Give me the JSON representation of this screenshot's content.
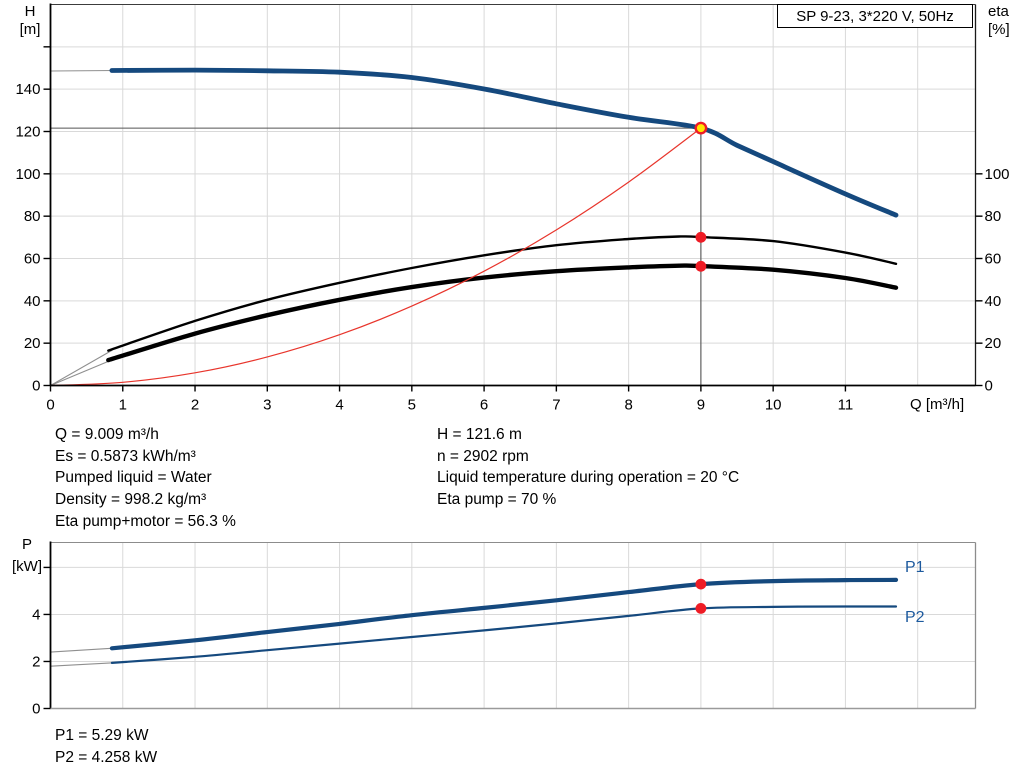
{
  "title_box": {
    "text": "SP 9-23, 3*220 V, 50Hz"
  },
  "colors": {
    "curve_blue": "#15497e",
    "label_blue": "#1d5a9e",
    "curve_black": "#000000",
    "curve_red": "#e8352c",
    "marker_red": "#ee1c25",
    "duty_fill": "#ffe600",
    "ext_gray": "#8f8f8f",
    "gridline": "#d9d9d9",
    "crosshair": "#555555",
    "text": "#000000"
  },
  "info_panel": {
    "left": [
      "Q = 9.009 m³/h",
      "Es = 0.5873 kWh/m³",
      "Pumped liquid = Water",
      "Density = 998.2 kg/m³",
      "Eta pump+motor = 56.3 %"
    ],
    "right": [
      "H = 121.6 m",
      "n = 2902 rpm",
      "Liquid temperature during operation = 20 °C",
      "Eta pump = 70 %"
    ]
  },
  "result_panel": {
    "lines": [
      "P1 = 5.29 kW",
      "P2 = 4.258 kW"
    ]
  },
  "chart_data": [
    {
      "id": "head-efficiency-curve",
      "type": "line",
      "title": "SP 9-23, 3*220 V, 50Hz",
      "xlabel": "Q [m³/h]",
      "ylabel": "H [m]",
      "ylabel_lines": [
        "H",
        "[m]"
      ],
      "y2label": "eta [%]",
      "y2label_lines": [
        "eta",
        "[%]"
      ],
      "xlim": [
        0,
        12.8
      ],
      "ylim": [
        0,
        180
      ],
      "y2_note": "eta axis 0-100 % plotted 1:1 against H metres",
      "xticks": [
        0,
        1,
        2,
        3,
        4,
        5,
        6,
        7,
        8,
        9,
        10,
        11
      ],
      "yticks": [
        0,
        20,
        40,
        60,
        80,
        100,
        120,
        140
      ],
      "ytick_marks": [
        0,
        20,
        40,
        60,
        80,
        100,
        120,
        140,
        160
      ],
      "y2ticks": [
        0,
        20,
        40,
        60,
        80,
        100
      ],
      "grid_x": [
        1,
        2,
        3,
        4,
        5,
        6,
        7,
        8,
        9,
        10,
        11,
        12
      ],
      "grid_y": [
        20,
        40,
        60,
        80,
        100,
        120,
        140,
        160
      ],
      "duty_point": {
        "q": 9,
        "h": 121.6
      },
      "series": [
        {
          "name": "head-extension",
          "color": "#8f8f8f",
          "width": 1.1,
          "points": [
            [
              0,
              148.6
            ],
            [
              0.9,
              148.8
            ]
          ]
        },
        {
          "name": "head",
          "color": "#15497e",
          "width": 4.8,
          "points": [
            [
              0.85,
              148.8
            ],
            [
              2,
              149.0
            ],
            [
              3,
              148.7
            ],
            [
              4,
              148.0
            ],
            [
              5,
              145.5
            ],
            [
              6,
              140.1
            ],
            [
              7,
              133.1
            ],
            [
              8,
              126.7
            ],
            [
              9,
              121.6
            ],
            [
              9.5,
              113.5
            ],
            [
              10,
              105.8
            ],
            [
              11,
              90.5
            ],
            [
              11.7,
              80.5
            ]
          ]
        },
        {
          "name": "eta-pump-extension",
          "color": "#8f8f8f",
          "width": 1.1,
          "points": [
            [
              0,
              0
            ],
            [
              0.85,
              16.6
            ]
          ]
        },
        {
          "name": "eta-pump",
          "color": "#000000",
          "width": 2.4,
          "points": [
            [
              0.8,
              16.5
            ],
            [
              2,
              30.5
            ],
            [
              3,
              40.5
            ],
            [
              4,
              48.5
            ],
            [
              5,
              55.5
            ],
            [
              6,
              61.5
            ],
            [
              7,
              66.3
            ],
            [
              8,
              69.2
            ],
            [
              8.7,
              70.4
            ],
            [
              9,
              70.1
            ],
            [
              10,
              68.2
            ],
            [
              11,
              62.8
            ],
            [
              11.7,
              57.5
            ]
          ]
        },
        {
          "name": "eta-pump-motor-extension",
          "color": "#8f8f8f",
          "width": 1.1,
          "points": [
            [
              0,
              0
            ],
            [
              0.85,
              12.1
            ]
          ]
        },
        {
          "name": "eta-pump-motor",
          "color": "#000000",
          "width": 4.4,
          "points": [
            [
              0.8,
              12
            ],
            [
              2,
              24.5
            ],
            [
              3,
              33.2
            ],
            [
              4,
              40.5
            ],
            [
              5,
              46.5
            ],
            [
              6,
              51
            ],
            [
              7,
              54
            ],
            [
              8,
              55.8
            ],
            [
              8.7,
              56.6
            ],
            [
              9,
              56.4
            ],
            [
              10,
              54.7
            ],
            [
              11,
              50.8
            ],
            [
              11.7,
              46.2
            ]
          ]
        },
        {
          "name": "system-curve",
          "color": "#e8352c",
          "width": 1.2,
          "points": [
            [
              0,
              0
            ],
            [
              1,
              1.5
            ],
            [
              2,
              6
            ],
            [
              3,
              13.5
            ],
            [
              4,
              24
            ],
            [
              5,
              37.5
            ],
            [
              6,
              54
            ],
            [
              7,
              73.5
            ],
            [
              8,
              96.1
            ],
            [
              9,
              121.6
            ]
          ]
        }
      ],
      "markers": [
        {
          "q": 9,
          "value": 121.6,
          "style": "duty-yellow",
          "meaning": "duty point H = 121.6 m"
        },
        {
          "q": 9,
          "value": 70,
          "style": "red-dot",
          "meaning": "eta pump = 70 %"
        },
        {
          "q": 9,
          "value": 56.3,
          "style": "red-dot",
          "meaning": "eta pump+motor = 56.3 %"
        }
      ]
    },
    {
      "id": "power-curve",
      "type": "line",
      "title": "",
      "xlabel": "",
      "ylabel": "P [kW]",
      "ylabel_lines": [
        "P",
        "[kW]"
      ],
      "xlim": [
        0,
        12.8
      ],
      "ylim": [
        0,
        7.06
      ],
      "yticks": [
        0,
        2,
        4
      ],
      "ytick_marks": [
        0,
        2,
        4,
        6
      ],
      "grid_x": [
        1,
        2,
        3,
        4,
        5,
        6,
        7,
        8,
        9,
        10,
        11,
        12
      ],
      "grid_y": [
        2,
        4,
        6
      ],
      "series": [
        {
          "name": "p1-extension",
          "color": "#8f8f8f",
          "width": 1.1,
          "points": [
            [
              0,
              2.4
            ],
            [
              0.9,
              2.57
            ]
          ]
        },
        {
          "name": "p1",
          "label": "P1",
          "color": "#15497e",
          "width": 4.2,
          "points": [
            [
              0.85,
              2.56
            ],
            [
              2,
              2.9
            ],
            [
              3,
              3.25
            ],
            [
              4,
              3.6
            ],
            [
              5,
              3.97
            ],
            [
              6,
              4.28
            ],
            [
              7,
              4.6
            ],
            [
              8,
              4.95
            ],
            [
              9,
              5.29
            ],
            [
              10,
              5.42
            ],
            [
              11,
              5.46
            ],
            [
              11.7,
              5.47
            ]
          ]
        },
        {
          "name": "p2-extension",
          "color": "#8f8f8f",
          "width": 1.1,
          "points": [
            [
              0,
              1.8
            ],
            [
              0.9,
              1.95
            ]
          ]
        },
        {
          "name": "p2",
          "label": "P2",
          "color": "#15497e",
          "width": 2.2,
          "points": [
            [
              0.85,
              1.94
            ],
            [
              2,
              2.2
            ],
            [
              3,
              2.48
            ],
            [
              4,
              2.76
            ],
            [
              5,
              3.04
            ],
            [
              6,
              3.32
            ],
            [
              7,
              3.62
            ],
            [
              8,
              3.94
            ],
            [
              9,
              4.258
            ],
            [
              10,
              4.32
            ],
            [
              11,
              4.34
            ],
            [
              11.7,
              4.34
            ]
          ]
        }
      ],
      "markers": [
        {
          "q": 9,
          "value": 5.29,
          "style": "red-dot",
          "meaning": "P1 = 5.29 kW"
        },
        {
          "q": 9,
          "value": 4.258,
          "style": "red-dot",
          "meaning": "P2 = 4.258 kW"
        }
      ]
    }
  ]
}
